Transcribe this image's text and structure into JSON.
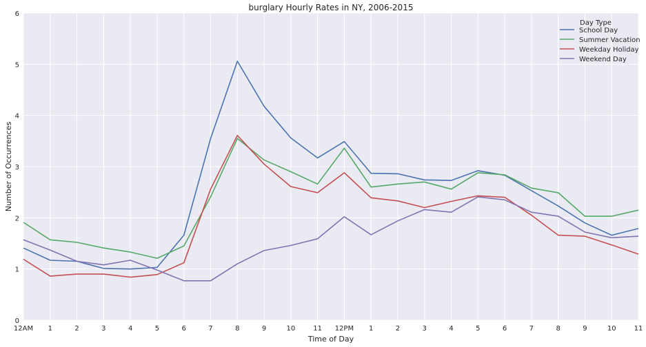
{
  "chart_data": {
    "type": "line",
    "title": "burglary Hourly Rates in NY, 2006-2015",
    "xlabel": "Time of Day",
    "ylabel": "Number of Occurrences",
    "ylim": [
      0,
      6
    ],
    "yticks": [
      "0",
      "1",
      "2",
      "3",
      "4",
      "5",
      "6"
    ],
    "x_tick_labels": [
      "12AM",
      "1",
      "2",
      "3",
      "4",
      "5",
      "6",
      "7",
      "8",
      "9",
      "10",
      "11",
      "12PM",
      "1",
      "2",
      "3",
      "4",
      "5",
      "6",
      "7",
      "8",
      "9",
      "10",
      "11"
    ],
    "grid": true,
    "legend": {
      "title": "Day Type",
      "position": "top-right"
    },
    "series": [
      {
        "name": "School Day",
        "color": "#4c72b0",
        "values": [
          1.41,
          1.17,
          1.15,
          1.01,
          1.0,
          1.03,
          1.66,
          3.55,
          5.06,
          4.18,
          3.56,
          3.17,
          3.49,
          2.87,
          2.86,
          2.74,
          2.73,
          2.92,
          2.83,
          2.53,
          2.23,
          1.9,
          1.66,
          1.79
        ]
      },
      {
        "name": "Summer Vacation",
        "color": "#55a868",
        "values": [
          1.91,
          1.57,
          1.52,
          1.41,
          1.33,
          1.21,
          1.45,
          2.41,
          3.55,
          3.13,
          2.9,
          2.66,
          3.36,
          2.6,
          2.66,
          2.7,
          2.56,
          2.88,
          2.84,
          2.58,
          2.49,
          2.03,
          2.03,
          2.15
        ]
      },
      {
        "name": "Weekday Holiday",
        "color": "#c44e52",
        "values": [
          1.19,
          0.86,
          0.9,
          0.9,
          0.84,
          0.89,
          1.12,
          2.56,
          3.61,
          3.05,
          2.61,
          2.49,
          2.88,
          2.39,
          2.33,
          2.2,
          2.32,
          2.43,
          2.4,
          2.05,
          1.66,
          1.64,
          1.47,
          1.29
        ]
      },
      {
        "name": "Weekend Day",
        "color": "#8172b2",
        "values": [
          1.57,
          1.37,
          1.15,
          1.08,
          1.17,
          0.98,
          0.77,
          0.77,
          1.1,
          1.36,
          1.46,
          1.59,
          2.02,
          1.67,
          1.94,
          2.16,
          2.11,
          2.41,
          2.35,
          2.11,
          2.03,
          1.72,
          1.61,
          1.64
        ]
      }
    ]
  }
}
